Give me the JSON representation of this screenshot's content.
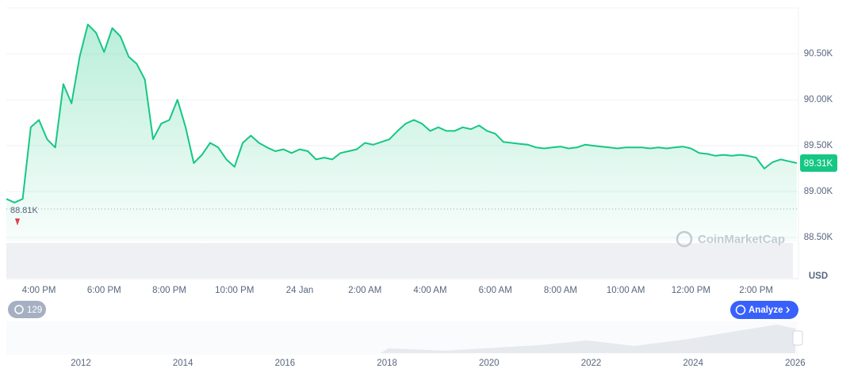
{
  "chart_data": {
    "type": "line",
    "color": "#16c784",
    "grid": true,
    "categories": [
      null,
      null,
      null,
      null,
      "4:00 PM",
      null,
      null,
      null,
      null,
      null,
      null,
      null,
      "6:00 PM",
      null,
      null,
      null,
      null,
      null,
      null,
      null,
      "8:00 PM",
      null,
      null,
      null,
      null,
      null,
      null,
      null,
      "10:00 PM",
      null,
      null,
      null,
      null,
      null,
      null,
      null,
      "24 Jan",
      null,
      null,
      null,
      null,
      null,
      null,
      null,
      "2:00 AM",
      null,
      null,
      null,
      null,
      null,
      null,
      null,
      "4:00 AM",
      null,
      null,
      null,
      null,
      null,
      null,
      null,
      "6:00 AM",
      null,
      null,
      null,
      null,
      null,
      null,
      null,
      "8:00 AM",
      null,
      null,
      null,
      null,
      null,
      null,
      null,
      "10:00 AM",
      null,
      null,
      null,
      null,
      null,
      null,
      null,
      "12:00 PM",
      null,
      null,
      null,
      null,
      null,
      null,
      null,
      "2:00 PM",
      null,
      null,
      null,
      null,
      null
    ],
    "values": [
      88920,
      88880,
      88920,
      89700,
      89780,
      89570,
      89480,
      90170,
      89960,
      90470,
      90820,
      90730,
      90520,
      90780,
      90690,
      90470,
      90390,
      90220,
      89570,
      89740,
      89780,
      90000,
      89700,
      89310,
      89400,
      89530,
      89480,
      89350,
      89270,
      89530,
      89610,
      89530,
      89480,
      89440,
      89460,
      89420,
      89460,
      89440,
      89350,
      89370,
      89350,
      89420,
      89440,
      89460,
      89530,
      89510,
      89540,
      89570,
      89660,
      89740,
      89780,
      89740,
      89660,
      89700,
      89660,
      89660,
      89700,
      89680,
      89720,
      89660,
      89630,
      89540,
      89530,
      89520,
      89510,
      89480,
      89470,
      89480,
      89490,
      89470,
      89480,
      89510,
      89500,
      89490,
      89480,
      89470,
      89480,
      89480,
      89480,
      89470,
      89480,
      89470,
      89480,
      89490,
      89470,
      89420,
      89410,
      89390,
      89400,
      89390,
      89400,
      89390,
      89370,
      89250,
      89320,
      89350,
      89330,
      89310
    ],
    "ylim": [
      88400,
      91000
    ],
    "yticks": [
      {
        "value": 88500,
        "label": "88.50K"
      },
      {
        "value": 89000,
        "label": "89.00K"
      },
      {
        "value": 89500,
        "label": "89.50K"
      },
      {
        "value": 90000,
        "label": "90.00K"
      },
      {
        "value": 90500,
        "label": "90.50K"
      }
    ],
    "y_unit": "USD",
    "reference_line": {
      "value": 88810,
      "label": "88.81K"
    },
    "last_price": {
      "value": 89310,
      "label": "89.31K"
    }
  },
  "ui": {
    "watermark": "CoinMarketCap",
    "history_badge": "129",
    "analyze_button": "Analyze",
    "navigator_years": [
      "2012",
      "2014",
      "2016",
      "2018",
      "2020",
      "2022",
      "2024",
      "2026"
    ]
  }
}
